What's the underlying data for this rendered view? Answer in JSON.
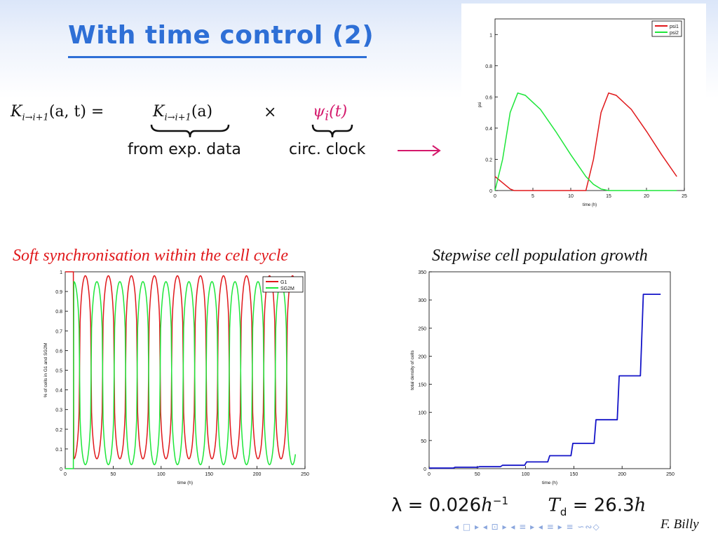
{
  "slide": {
    "title": "With time control (2)",
    "equation": {
      "lhs": "K",
      "lhs_sub": "i→i+1",
      "lhs_args": "(a, t) =",
      "term1": "K",
      "term1_sub": "i→i+1",
      "term1_args": "(a)",
      "times": "×",
      "term2": "ψ",
      "term2_sub": "i",
      "term2_args": "(t)",
      "label1": "from exp. data",
      "label2": "circ. clock"
    },
    "caption_left": "Soft synchronisation within the cell cycle",
    "caption_right": "Stepwise cell population growth",
    "formula": {
      "lambda": "λ = 0.026",
      "lambda_unit": "h",
      "lambda_exp": "−1",
      "td": "T",
      "td_sub": "d",
      "td_value": "= 26.3",
      "td_unit": "h"
    },
    "author": "F. Billy",
    "nav_symbols": "◂ □ ▸ ◂ ⊡ ▸ ◂ ≡ ▸ ◂ ≡ ▸   ≡ ∽∾◇"
  },
  "colors": {
    "title": "#2e6fd6",
    "accent": "#d4186b",
    "red": "#e0181b",
    "green": "#1ee63a",
    "blue": "#1414c8"
  },
  "chart_data": [
    {
      "id": "psi",
      "type": "line",
      "xlabel": "time (h)",
      "ylabel": "psi",
      "xlim": [
        0,
        25
      ],
      "ylim": [
        0,
        1.1
      ],
      "xticks": [
        0,
        5,
        10,
        15,
        20,
        25
      ],
      "yticks": [
        0,
        0.2,
        0.4,
        0.6,
        0.8,
        1
      ],
      "legend": "top-right",
      "series": [
        {
          "name": "psi1",
          "color": "#e0181b",
          "x": [
            0,
            1,
            2,
            2.5,
            12,
            13,
            14,
            15,
            16,
            18,
            20,
            22,
            24
          ],
          "y": [
            0.09,
            0.05,
            0.01,
            0,
            0,
            0.2,
            0.5,
            0.625,
            0.61,
            0.52,
            0.38,
            0.23,
            0.09
          ]
        },
        {
          "name": "psi2",
          "color": "#1ee63a",
          "x": [
            0,
            1,
            2,
            3,
            4,
            6,
            8,
            10,
            12,
            13,
            14,
            15,
            20,
            24
          ],
          "y": [
            0,
            0.2,
            0.5,
            0.625,
            0.61,
            0.52,
            0.38,
            0.23,
            0.09,
            0.04,
            0.01,
            0,
            0,
            0
          ]
        }
      ]
    },
    {
      "id": "sync",
      "type": "line",
      "xlabel": "time (h)",
      "ylabel": "% of cells in G1 and SG2M",
      "xlim": [
        0,
        250
      ],
      "ylim": [
        0,
        1
      ],
      "xticks": [
        0,
        50,
        100,
        150,
        200,
        250
      ],
      "yticks": [
        0,
        0.1,
        0.2,
        0.3,
        0.4,
        0.5,
        0.6,
        0.7,
        0.8,
        0.9,
        1
      ],
      "legend": "top-right",
      "period_h": 24,
      "series": [
        {
          "name": "G1",
          "color": "#e0181b",
          "min": 0.05,
          "max": 0.98
        },
        {
          "name": "SG2M",
          "color": "#1ee63a",
          "min": 0.02,
          "max": 0.95
        }
      ]
    },
    {
      "id": "growth",
      "type": "line",
      "xlabel": "time (h)",
      "ylabel": "total density of cells",
      "xlim": [
        0,
        250
      ],
      "ylim": [
        0,
        350
      ],
      "xticks": [
        0,
        50,
        100,
        150,
        200,
        250
      ],
      "yticks": [
        0,
        50,
        100,
        150,
        200,
        250,
        300,
        350
      ],
      "series": [
        {
          "name": "",
          "color": "#1414c8",
          "x": [
            0,
            25,
            27,
            50,
            52,
            74,
            76,
            99,
            101,
            123,
            125,
            147,
            149,
            171,
            173,
            195,
            197,
            219,
            222,
            240
          ],
          "y": [
            1,
            1,
            2.5,
            2.5,
            3.5,
            3.5,
            6,
            6,
            12,
            12,
            23,
            23,
            45,
            45,
            87,
            87,
            165,
            165,
            310,
            310
          ]
        }
      ]
    }
  ]
}
